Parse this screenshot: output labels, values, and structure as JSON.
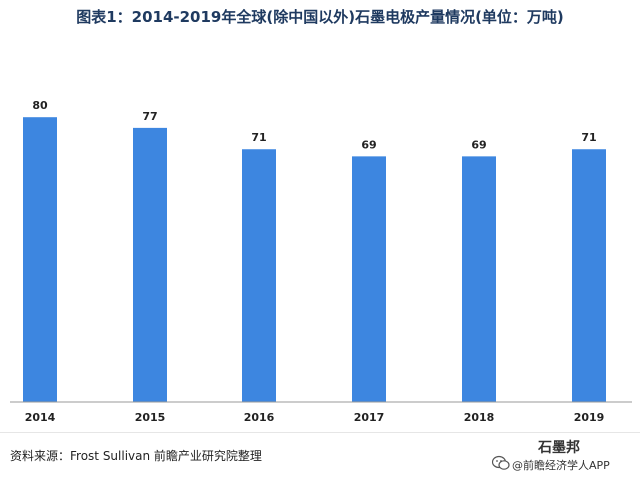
{
  "title": "图表1：2014-2019年全球(除中国以外)石墨电极产量情况(单位：万吨)",
  "source": "资料来源：Frost Sullivan  前瞻产业研究院整理",
  "brand": {
    "line1": "石墨邦",
    "line2": "@前瞻经济学人APP"
  },
  "colors": {
    "bar": "#3d86e0",
    "axis": "#999999",
    "title": "#1f3a60"
  },
  "chart_data": {
    "type": "bar",
    "title": "图表1：2014-2019年全球(除中国以外)石墨电极产量情况(单位：万吨)",
    "xlabel": "",
    "ylabel": "",
    "categories": [
      "2014",
      "2015",
      "2016",
      "2017",
      "2018",
      "2019"
    ],
    "values": [
      80,
      77,
      71,
      69,
      69,
      71
    ],
    "data_labels": [
      "80",
      "77",
      "71",
      "69",
      "69",
      "71"
    ],
    "ylim": [
      0,
      100
    ],
    "grid": false,
    "legend": "none"
  }
}
